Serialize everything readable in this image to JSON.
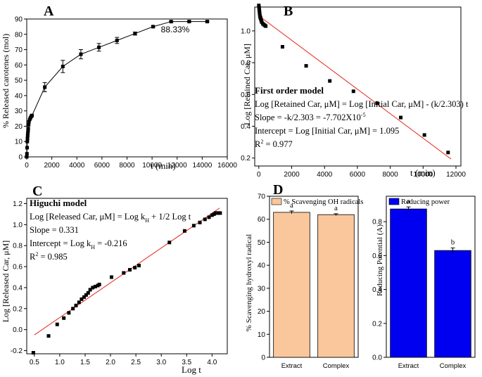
{
  "chart_data": [
    {
      "panel": "A",
      "type": "line",
      "title": "",
      "xlabel": "t (min)",
      "ylabel": "% Released carotenes (mol)",
      "xlim": [
        0,
        16000
      ],
      "ylim": [
        0,
        90
      ],
      "xticks": [
        0,
        2000,
        4000,
        6000,
        8000,
        10000,
        12000,
        14000,
        16000
      ],
      "yticks": [
        0,
        10,
        20,
        30,
        40,
        50,
        60,
        70,
        80,
        90
      ],
      "annotation": "88.33%",
      "marker": "square",
      "points": [
        {
          "x": 0,
          "y": 0,
          "err": 0
        },
        {
          "x": 15,
          "y": 2,
          "err": 0
        },
        {
          "x": 30,
          "y": 6,
          "err": 0
        },
        {
          "x": 45,
          "y": 10,
          "err": 0
        },
        {
          "x": 60,
          "y": 12,
          "err": 0
        },
        {
          "x": 75,
          "y": 14,
          "err": 0
        },
        {
          "x": 90,
          "y": 15.5,
          "err": 0
        },
        {
          "x": 105,
          "y": 17,
          "err": 0
        },
        {
          "x": 120,
          "y": 18.5,
          "err": 0
        },
        {
          "x": 150,
          "y": 21,
          "err": 0
        },
        {
          "x": 180,
          "y": 23,
          "err": 0
        },
        {
          "x": 240,
          "y": 24.5,
          "err": 0
        },
        {
          "x": 300,
          "y": 25.5,
          "err": 0
        },
        {
          "x": 360,
          "y": 26.5,
          "err": 0
        },
        {
          "x": 420,
          "y": 27,
          "err": 0
        },
        {
          "x": 1440,
          "y": 45.5,
          "err": 3
        },
        {
          "x": 2880,
          "y": 59,
          "err": 4
        },
        {
          "x": 4320,
          "y": 67,
          "err": 3
        },
        {
          "x": 5760,
          "y": 71.5,
          "err": 2.5
        },
        {
          "x": 7200,
          "y": 76,
          "err": 2
        },
        {
          "x": 8640,
          "y": 80.5,
          "err": 1
        },
        {
          "x": 10080,
          "y": 85,
          "err": 0.5
        },
        {
          "x": 11520,
          "y": 88.3,
          "err": 0.3
        },
        {
          "x": 12960,
          "y": 88.33,
          "err": 0.3
        },
        {
          "x": 14400,
          "y": 88.33,
          "err": 0.3
        }
      ]
    },
    {
      "panel": "B",
      "type": "scatter",
      "title": "First order model",
      "xlabel": "t (min)",
      "ylabel": "Log [Retained Car, μM]",
      "xlim": [
        -250,
        12300
      ],
      "ylim": [
        0.15,
        1.15
      ],
      "xticks": [
        0,
        2000,
        4000,
        6000,
        8000,
        10000,
        12000
      ],
      "yticks": [
        0.2,
        0.4,
        0.6,
        0.8,
        1.0
      ],
      "yticklabels": [
        "0.2",
        "0.4",
        "0.6",
        "0.8",
        "1.0"
      ],
      "equations": {
        "model": "Log [Retained Car, μM] = Log [Initial Car, μM] - (k/2.303) t",
        "slope_prefix": "Slope = -k/2.303 = -7.702X10",
        "slope_exp": "-5",
        "intercept": "Intercept = Log [Initial Car, μM] = 1.095",
        "r2_prefix": "R",
        "r2_exp": "2",
        "r2_value": " = 0.977"
      },
      "fit_line": {
        "x": [
          0,
          11700
        ],
        "y": [
          1.095,
          0.194
        ]
      },
      "points": [
        {
          "x": 0,
          "y": 1.16
        },
        {
          "x": 10,
          "y": 1.15
        },
        {
          "x": 20,
          "y": 1.14
        },
        {
          "x": 30,
          "y": 1.13
        },
        {
          "x": 40,
          "y": 1.12
        },
        {
          "x": 50,
          "y": 1.11
        },
        {
          "x": 60,
          "y": 1.1
        },
        {
          "x": 75,
          "y": 1.09
        },
        {
          "x": 90,
          "y": 1.085
        },
        {
          "x": 105,
          "y": 1.08
        },
        {
          "x": 120,
          "y": 1.075
        },
        {
          "x": 150,
          "y": 1.065
        },
        {
          "x": 180,
          "y": 1.055
        },
        {
          "x": 240,
          "y": 1.045
        },
        {
          "x": 300,
          "y": 1.04
        },
        {
          "x": 360,
          "y": 1.035
        },
        {
          "x": 420,
          "y": 1.03
        },
        {
          "x": 1440,
          "y": 0.9
        },
        {
          "x": 2880,
          "y": 0.78
        },
        {
          "x": 4320,
          "y": 0.685
        },
        {
          "x": 5760,
          "y": 0.62
        },
        {
          "x": 7200,
          "y": 0.545
        },
        {
          "x": 8640,
          "y": 0.455
        },
        {
          "x": 10080,
          "y": 0.345
        },
        {
          "x": 11520,
          "y": 0.235
        }
      ]
    },
    {
      "panel": "C",
      "type": "scatter",
      "title": "Higuchi model",
      "xlabel": "Log t",
      "ylabel": "Log [Released Car, μM]",
      "xlim": [
        0.35,
        4.3
      ],
      "ylim": [
        -0.23,
        1.25
      ],
      "xticks": [
        0.5,
        1.0,
        1.5,
        2.0,
        2.5,
        3.0,
        3.5,
        4.0
      ],
      "xticklabels": [
        "0.5",
        "1.0",
        "1.5",
        "2.0",
        "2.5",
        "3.0",
        "3.5",
        "4.0"
      ],
      "yticks": [
        -0.2,
        0.0,
        0.2,
        0.4,
        0.6,
        0.8,
        1.0,
        1.2
      ],
      "yticklabels": [
        "-0.2",
        "0.0",
        "0.2",
        "0.4",
        "0.6",
        "0.8",
        "1.0",
        "1.2"
      ],
      "equations": {
        "model_prefix": "Log [Released Car, μM] = Log k",
        "model_sub": "H",
        "model_suffix": " + 1/2 Log t",
        "slope": "Slope = 0.331",
        "intercept_prefix": "Intercept = Log k",
        "intercept_sub": "H",
        "intercept_suffix": " = -0.216",
        "r2_prefix": "R",
        "r2_exp": "2",
        "r2_value": " = 0.985"
      },
      "fit_line": {
        "x": [
          0.5,
          4.15
        ],
        "y": [
          -0.0505,
          1.158
        ]
      },
      "points": [
        {
          "x": 0.48,
          "y": -0.22
        },
        {
          "x": 0.78,
          "y": -0.06
        },
        {
          "x": 0.95,
          "y": 0.05
        },
        {
          "x": 1.08,
          "y": 0.11
        },
        {
          "x": 1.18,
          "y": 0.16
        },
        {
          "x": 1.26,
          "y": 0.2
        },
        {
          "x": 1.32,
          "y": 0.23
        },
        {
          "x": 1.38,
          "y": 0.26
        },
        {
          "x": 1.43,
          "y": 0.29
        },
        {
          "x": 1.48,
          "y": 0.31
        },
        {
          "x": 1.52,
          "y": 0.33
        },
        {
          "x": 1.56,
          "y": 0.35
        },
        {
          "x": 1.6,
          "y": 0.38
        },
        {
          "x": 1.65,
          "y": 0.4
        },
        {
          "x": 1.7,
          "y": 0.41
        },
        {
          "x": 1.75,
          "y": 0.42
        },
        {
          "x": 1.78,
          "y": 0.43
        },
        {
          "x": 2.02,
          "y": 0.5
        },
        {
          "x": 2.26,
          "y": 0.54
        },
        {
          "x": 2.38,
          "y": 0.57
        },
        {
          "x": 2.48,
          "y": 0.59
        },
        {
          "x": 2.56,
          "y": 0.61
        },
        {
          "x": 3.16,
          "y": 0.83
        },
        {
          "x": 3.46,
          "y": 0.94
        },
        {
          "x": 3.64,
          "y": 0.99
        },
        {
          "x": 3.76,
          "y": 1.02
        },
        {
          "x": 3.86,
          "y": 1.05
        },
        {
          "x": 3.94,
          "y": 1.07
        },
        {
          "x": 4.0,
          "y": 1.09
        },
        {
          "x": 4.04,
          "y": 1.1
        },
        {
          "x": 4.07,
          "y": 1.11
        },
        {
          "x": 4.1,
          "y": 1.11
        },
        {
          "x": 4.13,
          "y": 1.11
        },
        {
          "x": 4.16,
          "y": 1.11
        }
      ]
    },
    {
      "panel": "D",
      "type": "bar",
      "subplots": [
        {
          "type": "bar",
          "legend": "% Scavenging OH radicals",
          "ylabel": "% Scavenging hydroxyl radical",
          "color": "#f9c79b",
          "categories": [
            "Extract",
            "Complex"
          ],
          "values": [
            63,
            62
          ],
          "errors": [
            0.6,
            0.4
          ],
          "letters": [
            "a",
            "a"
          ],
          "ylim": [
            0,
            70
          ],
          "yticks": [
            0,
            10,
            20,
            30,
            40,
            50,
            60,
            70
          ]
        },
        {
          "type": "bar",
          "legend": "Reducing power",
          "ylabel": "Reducing Potential (A)",
          "color": "#0000f0",
          "categories": [
            "Extract",
            "Complex"
          ],
          "values": [
            0.875,
            0.63
          ],
          "errors": [
            0.012,
            0.015
          ],
          "letters": [
            "a",
            "b"
          ],
          "ylim": [
            0,
            0.95
          ],
          "yticks": [
            0.0,
            0.2,
            0.4,
            0.6,
            0.8
          ],
          "yticklabels": [
            "0.0",
            "0.2",
            "0.4",
            "0.6",
            "0.8"
          ]
        }
      ]
    }
  ]
}
